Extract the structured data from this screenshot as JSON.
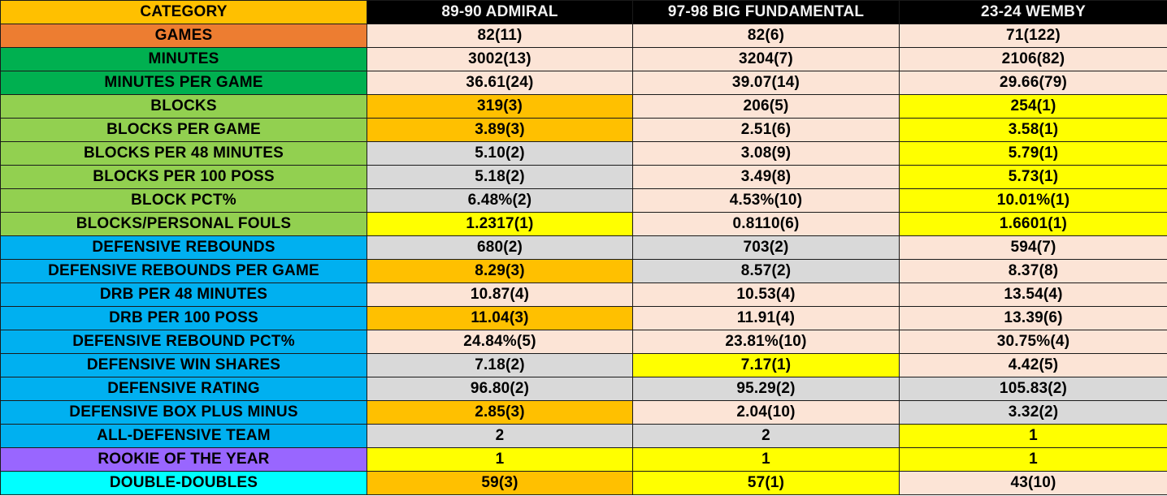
{
  "table": {
    "header": [
      "CATEGORY",
      "89-90 ADMIRAL",
      "97-98 BIG FUNDAMENTAL",
      "23-24 WEMBY"
    ],
    "rows": [
      {
        "label": "GAMES",
        "cells": [
          "82(11)",
          "82(6)",
          "71(122)"
        ]
      },
      {
        "label": "MINUTES",
        "cells": [
          "3002(13)",
          "3204(7)",
          "2106(82)"
        ]
      },
      {
        "label": "MINUTES PER GAME",
        "cells": [
          "36.61(24)",
          "39.07(14)",
          "29.66(79)"
        ]
      },
      {
        "label": "BLOCKS",
        "cells": [
          "319(3)",
          "206(5)",
          "254(1)"
        ]
      },
      {
        "label": "BLOCKS PER GAME",
        "cells": [
          "3.89(3)",
          "2.51(6)",
          "3.58(1)"
        ]
      },
      {
        "label": "BLOCKS PER 48 MINUTES",
        "cells": [
          "5.10(2)",
          "3.08(9)",
          "5.79(1)"
        ]
      },
      {
        "label": "BLOCKS PER 100 POSS",
        "cells": [
          "5.18(2)",
          "3.49(8)",
          "5.73(1)"
        ]
      },
      {
        "label": "BLOCK PCT%",
        "cells": [
          "6.48%(2)",
          "4.53%(10)",
          "10.01%(1)"
        ]
      },
      {
        "label": "BLOCKS/PERSONAL FOULS",
        "cells": [
          "1.2317(1)",
          "0.8110(6)",
          "1.6601(1)"
        ]
      },
      {
        "label": "DEFENSIVE REBOUNDS",
        "cells": [
          "680(2)",
          "703(2)",
          "594(7)"
        ]
      },
      {
        "label": "DEFENSIVE REBOUNDS PER GAME",
        "cells": [
          "8.29(3)",
          "8.57(2)",
          "8.37(8)"
        ]
      },
      {
        "label": "DRB PER 48 MINUTES",
        "cells": [
          "10.87(4)",
          "10.53(4)",
          "13.54(4)"
        ]
      },
      {
        "label": "DRB PER 100 POSS",
        "cells": [
          "11.04(3)",
          "11.91(4)",
          "13.39(6)"
        ]
      },
      {
        "label": "DEFENSIVE REBOUND PCT%",
        "cells": [
          "24.84%(5)",
          "23.81%(10)",
          "30.75%(4)"
        ]
      },
      {
        "label": "DEFENSIVE WIN SHARES",
        "cells": [
          "7.18(2)",
          "7.17(1)",
          "4.42(5)"
        ]
      },
      {
        "label": "DEFENSIVE RATING",
        "cells": [
          "96.80(2)",
          "95.29(2)",
          "105.83(2)"
        ]
      },
      {
        "label": "DEFENSIVE BOX PLUS MINUS",
        "cells": [
          "2.85(3)",
          "2.04(10)",
          "3.32(2)"
        ]
      },
      {
        "label": "ALL-DEFENSIVE TEAM",
        "cells": [
          "2",
          "2",
          "1"
        ]
      },
      {
        "label": "ROOKIE OF THE YEAR",
        "cells": [
          "1",
          "1",
          "1"
        ]
      },
      {
        "label": "DOUBLE-DOUBLES",
        "cells": [
          "59(3)",
          "57(1)",
          "43(10)"
        ]
      }
    ]
  },
  "colors": {
    "header_category": "#ffc000",
    "header_players": "#000000",
    "games_label": "#ed7d31",
    "minutes_label": "#00b050",
    "blocks_label": "#92d050",
    "rebounds_label": "#00b0f0",
    "rookie_label": "#9966ff",
    "double_doubles_label": "#00ffff",
    "rank_first": "#ffff00",
    "rank_third": "#ffc000",
    "rank_second": "#d9d9d9",
    "default_cell": "#fce4d6"
  }
}
